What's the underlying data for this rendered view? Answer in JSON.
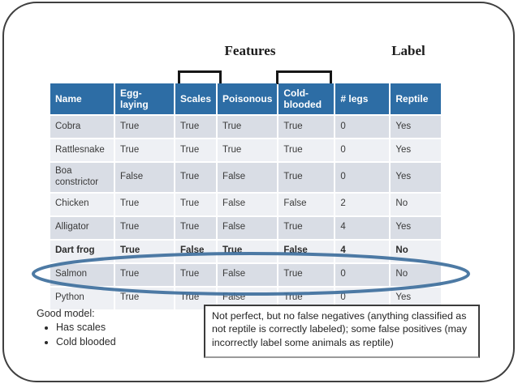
{
  "annotations": {
    "features": "Features",
    "label": "Label"
  },
  "table": {
    "headers": [
      "Name",
      "Egg-laying",
      "Scales",
      "Poisonous",
      "Cold-blooded",
      "# legs",
      "Reptile"
    ],
    "rows": [
      {
        "name": "Cobra",
        "values": [
          "True",
          "True",
          "True",
          "True",
          "0",
          "Yes"
        ],
        "shade": "dark",
        "bold": false,
        "circled": false
      },
      {
        "name": "Rattlesnake",
        "values": [
          "True",
          "True",
          "True",
          "True",
          "0",
          "Yes"
        ],
        "shade": "light",
        "bold": false,
        "circled": false
      },
      {
        "name": "Boa constrictor",
        "values": [
          "False",
          "True",
          "False",
          "True",
          "0",
          "Yes"
        ],
        "shade": "dark",
        "bold": false,
        "circled": false
      },
      {
        "name": "Chicken",
        "values": [
          "True",
          "True",
          "False",
          "False",
          "2",
          "No"
        ],
        "shade": "light",
        "bold": false,
        "circled": false
      },
      {
        "name": "Alligator",
        "values": [
          "True",
          "True",
          "False",
          "True",
          "4",
          "Yes"
        ],
        "shade": "dark",
        "bold": false,
        "circled": false
      },
      {
        "name": "Dart frog",
        "values": [
          "True",
          "False",
          "True",
          "False",
          "4",
          "No"
        ],
        "shade": "light",
        "bold": true,
        "circled": false
      },
      {
        "name": "Salmon",
        "values": [
          "True",
          "True",
          "False",
          "True",
          "0",
          "No"
        ],
        "shade": "dark",
        "bold": false,
        "circled": true
      },
      {
        "name": "Python",
        "values": [
          "True",
          "True",
          "False",
          "True",
          "0",
          "Yes"
        ],
        "shade": "light",
        "bold": false,
        "circled": false
      }
    ]
  },
  "good_model": {
    "title": "Good model:",
    "bullets": [
      "Has scales",
      "Cold blooded"
    ]
  },
  "note_box": {
    "text": "Not perfect, but no false negatives (anything classified as not reptile is correctly labeled); some false positives (may incorrectly label some animals as reptile)"
  },
  "colors": {
    "header_bg": "#2d6da5",
    "row_dark": "#d9dde5",
    "row_light": "#eef0f4",
    "ellipse_stroke": "#3e6f9c",
    "frame_border": "#3f3f3f"
  }
}
